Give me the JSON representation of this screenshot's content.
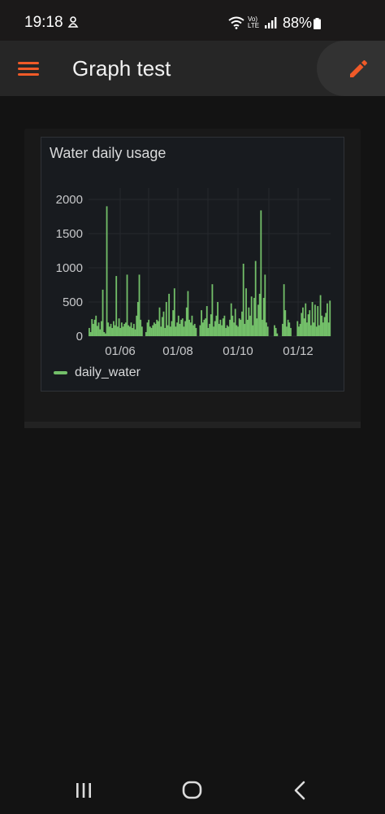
{
  "status_bar": {
    "time": "19:18",
    "network_label": "Vo) LTE",
    "battery_text": "88%"
  },
  "app_bar": {
    "title": "Graph test",
    "menu_icon": "hamburger-menu-icon",
    "edit_icon": "pencil-icon",
    "accent_color": "#f05a28"
  },
  "panel": {
    "title": "Water daily usage"
  },
  "chart_data": {
    "type": "bar",
    "title": "Water daily usage",
    "xlabel": "",
    "ylabel": "",
    "ylim": [
      0,
      2000
    ],
    "yticks": [
      "0",
      "500",
      "1000",
      "1500",
      "2000"
    ],
    "xticks": [
      "01/06",
      "01/08",
      "01/10",
      "01/12"
    ],
    "grid": true,
    "legend_position": "bottom-left",
    "series": [
      {
        "name": "daily_water",
        "color": "#73bf69",
        "values": [
          120,
          60,
          250,
          180,
          240,
          300,
          150,
          200,
          100,
          220,
          680,
          60,
          40,
          1900,
          200,
          140,
          180,
          120,
          220,
          160,
          880,
          140,
          260,
          120,
          200,
          140,
          180,
          200,
          900,
          160,
          140,
          200,
          120,
          180,
          100,
          300,
          500,
          900,
          240,
          140,
          0,
          0,
          60,
          200,
          240,
          140,
          120,
          160,
          200,
          180,
          240,
          220,
          420,
          140,
          280,
          360,
          120,
          500,
          160,
          620,
          140,
          220,
          380,
          700,
          140,
          200,
          300,
          180,
          240,
          260,
          140,
          220,
          420,
          660,
          240,
          200,
          300,
          160,
          180,
          120,
          0,
          0,
          160,
          380,
          200,
          240,
          260,
          440,
          120,
          180,
          320,
          760,
          140,
          220,
          300,
          500,
          180,
          240,
          160,
          260,
          300,
          120,
          160,
          140,
          240,
          480,
          300,
          200,
          400,
          160,
          140,
          260,
          240,
          360,
          1060,
          180,
          700,
          240,
          420,
          300,
          580,
          160,
          560,
          1100,
          260,
          460,
          620,
          1840,
          240,
          560,
          900,
          200,
          140,
          0,
          0,
          0,
          0,
          160,
          120,
          40,
          0,
          0,
          0,
          180,
          760,
          380,
          140,
          240,
          200,
          120,
          0,
          0,
          0,
          0,
          220,
          140,
          180,
          340,
          420,
          260,
          480,
          200,
          320,
          380,
          160,
          500,
          200,
          460,
          140,
          440,
          160,
          600,
          300,
          200,
          280,
          340,
          480,
          200,
          520
        ]
      }
    ]
  },
  "nav_bar": {
    "recents_icon": "recent-apps-icon",
    "home_icon": "home-icon",
    "back_icon": "back-icon"
  }
}
